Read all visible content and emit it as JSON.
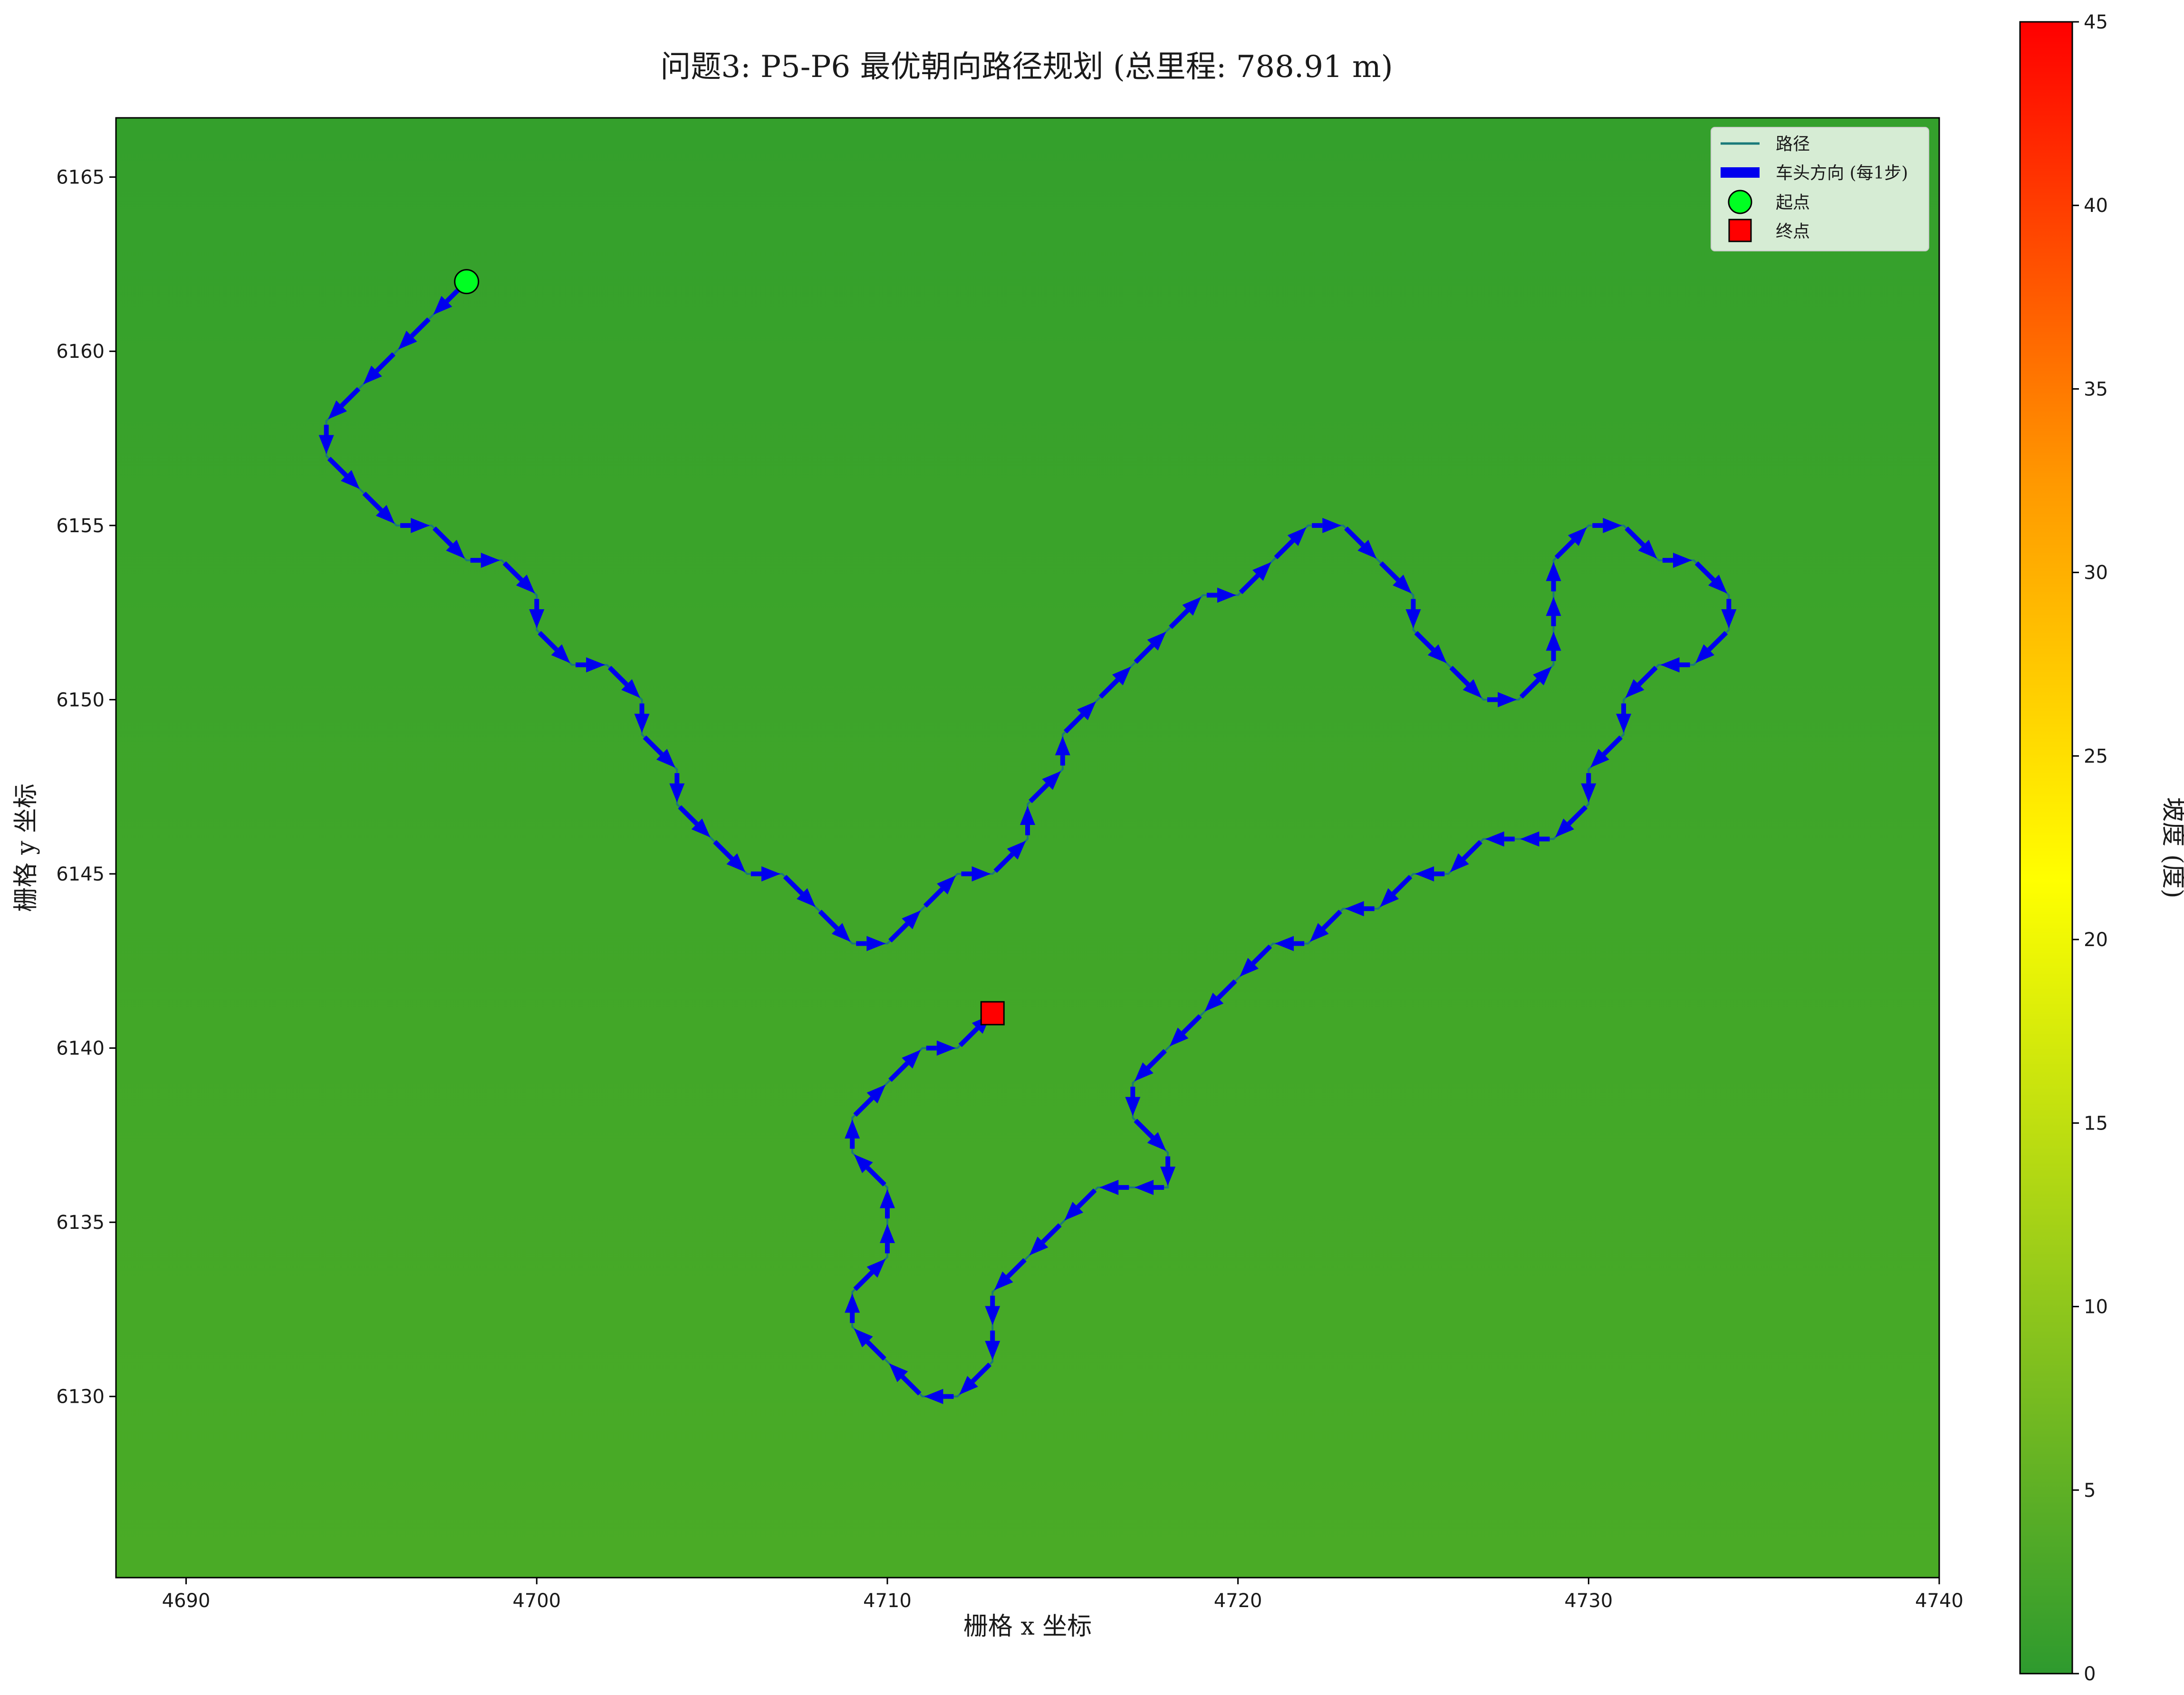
{
  "chart_data": {
    "type": "line",
    "title": "问题3: P5-P6 最优朝向路径规划 (总里程: 788.91 m)",
    "xlabel": "栅格 x 坐标",
    "ylabel": "栅格 y 坐标",
    "xlim": [
      4688,
      4740
    ],
    "ylim": [
      6124.8,
      6166.7
    ],
    "xticks": [
      4690,
      4700,
      4710,
      4720,
      4730,
      4740
    ],
    "yticks": [
      6130,
      6135,
      6140,
      6145,
      6150,
      6155,
      6160,
      6165
    ],
    "grid": false,
    "background_color": "#3aa22c",
    "colorbar": {
      "label": "坡度 (度)",
      "range": [
        0,
        45
      ],
      "ticks": [
        0,
        5,
        10,
        15,
        20,
        25,
        30,
        35,
        40,
        45
      ],
      "colors": [
        "#2e9a2e",
        "#8ec61c",
        "#ffff00",
        "#ff9900",
        "#ff0000"
      ]
    },
    "legend": {
      "position": "top-right",
      "entries": [
        {
          "label": "路径",
          "kind": "line",
          "color": "#1a7a7a"
        },
        {
          "label": "车头方向 (每1步)",
          "kind": "arrow",
          "color": "#0000ee"
        },
        {
          "label": "起点",
          "kind": "circle",
          "color": "#00ff22"
        },
        {
          "label": "终点",
          "kind": "square",
          "color": "#ff0000"
        }
      ]
    },
    "path_color": "#1a7a7a",
    "arrow_color": "#0000ee",
    "start": {
      "x": 4698,
      "y": 6162
    },
    "end": {
      "x": 4713,
      "y": 6141
    },
    "path": [
      [
        4698,
        6162
      ],
      [
        4697,
        6161
      ],
      [
        4696,
        6160
      ],
      [
        4695,
        6159
      ],
      [
        4694,
        6158
      ],
      [
        4694,
        6157
      ],
      [
        4695,
        6156
      ],
      [
        4696,
        6155
      ],
      [
        4697,
        6155
      ],
      [
        4698,
        6154
      ],
      [
        4699,
        6154
      ],
      [
        4700,
        6153
      ],
      [
        4700,
        6152
      ],
      [
        4701,
        6151
      ],
      [
        4702,
        6151
      ],
      [
        4703,
        6150
      ],
      [
        4703,
        6149
      ],
      [
        4704,
        6148
      ],
      [
        4704,
        6147
      ],
      [
        4705,
        6146
      ],
      [
        4706,
        6145
      ],
      [
        4707,
        6145
      ],
      [
        4708,
        6144
      ],
      [
        4709,
        6143
      ],
      [
        4710,
        6143
      ],
      [
        4711,
        6144
      ],
      [
        4712,
        6145
      ],
      [
        4713,
        6145
      ],
      [
        4714,
        6146
      ],
      [
        4714,
        6147
      ],
      [
        4715,
        6148
      ],
      [
        4715,
        6149
      ],
      [
        4716,
        6150
      ],
      [
        4717,
        6151
      ],
      [
        4718,
        6152
      ],
      [
        4719,
        6153
      ],
      [
        4720,
        6153
      ],
      [
        4721,
        6154
      ],
      [
        4722,
        6155
      ],
      [
        4723,
        6155
      ],
      [
        4724,
        6154
      ],
      [
        4725,
        6153
      ],
      [
        4725,
        6152
      ],
      [
        4726,
        6151
      ],
      [
        4727,
        6150
      ],
      [
        4728,
        6150
      ],
      [
        4729,
        6151
      ],
      [
        4729,
        6152
      ],
      [
        4729,
        6153
      ],
      [
        4729,
        6154
      ],
      [
        4730,
        6155
      ],
      [
        4731,
        6155
      ],
      [
        4732,
        6154
      ],
      [
        4733,
        6154
      ],
      [
        4734,
        6153
      ],
      [
        4734,
        6152
      ],
      [
        4733,
        6151
      ],
      [
        4732,
        6151
      ],
      [
        4731,
        6150
      ],
      [
        4731,
        6149
      ],
      [
        4730,
        6148
      ],
      [
        4730,
        6147
      ],
      [
        4729,
        6146
      ],
      [
        4728,
        6146
      ],
      [
        4727,
        6146
      ],
      [
        4726,
        6145
      ],
      [
        4725,
        6145
      ],
      [
        4724,
        6144
      ],
      [
        4723,
        6144
      ],
      [
        4722,
        6143
      ],
      [
        4721,
        6143
      ],
      [
        4720,
        6142
      ],
      [
        4719,
        6141
      ],
      [
        4718,
        6140
      ],
      [
        4717,
        6139
      ],
      [
        4717,
        6138
      ],
      [
        4718,
        6137
      ],
      [
        4718,
        6136
      ],
      [
        4717,
        6136
      ],
      [
        4716,
        6136
      ],
      [
        4715,
        6135
      ],
      [
        4714,
        6134
      ],
      [
        4713,
        6133
      ],
      [
        4713,
        6132
      ],
      [
        4713,
        6131
      ],
      [
        4712,
        6130
      ],
      [
        4711,
        6130
      ],
      [
        4710,
        6131
      ],
      [
        4709,
        6132
      ],
      [
        4709,
        6133
      ],
      [
        4710,
        6134
      ],
      [
        4710,
        6135
      ],
      [
        4710,
        6136
      ],
      [
        4709,
        6137
      ],
      [
        4709,
        6138
      ],
      [
        4710,
        6139
      ],
      [
        4711,
        6140
      ],
      [
        4712,
        6140
      ],
      [
        4713,
        6141
      ]
    ]
  }
}
